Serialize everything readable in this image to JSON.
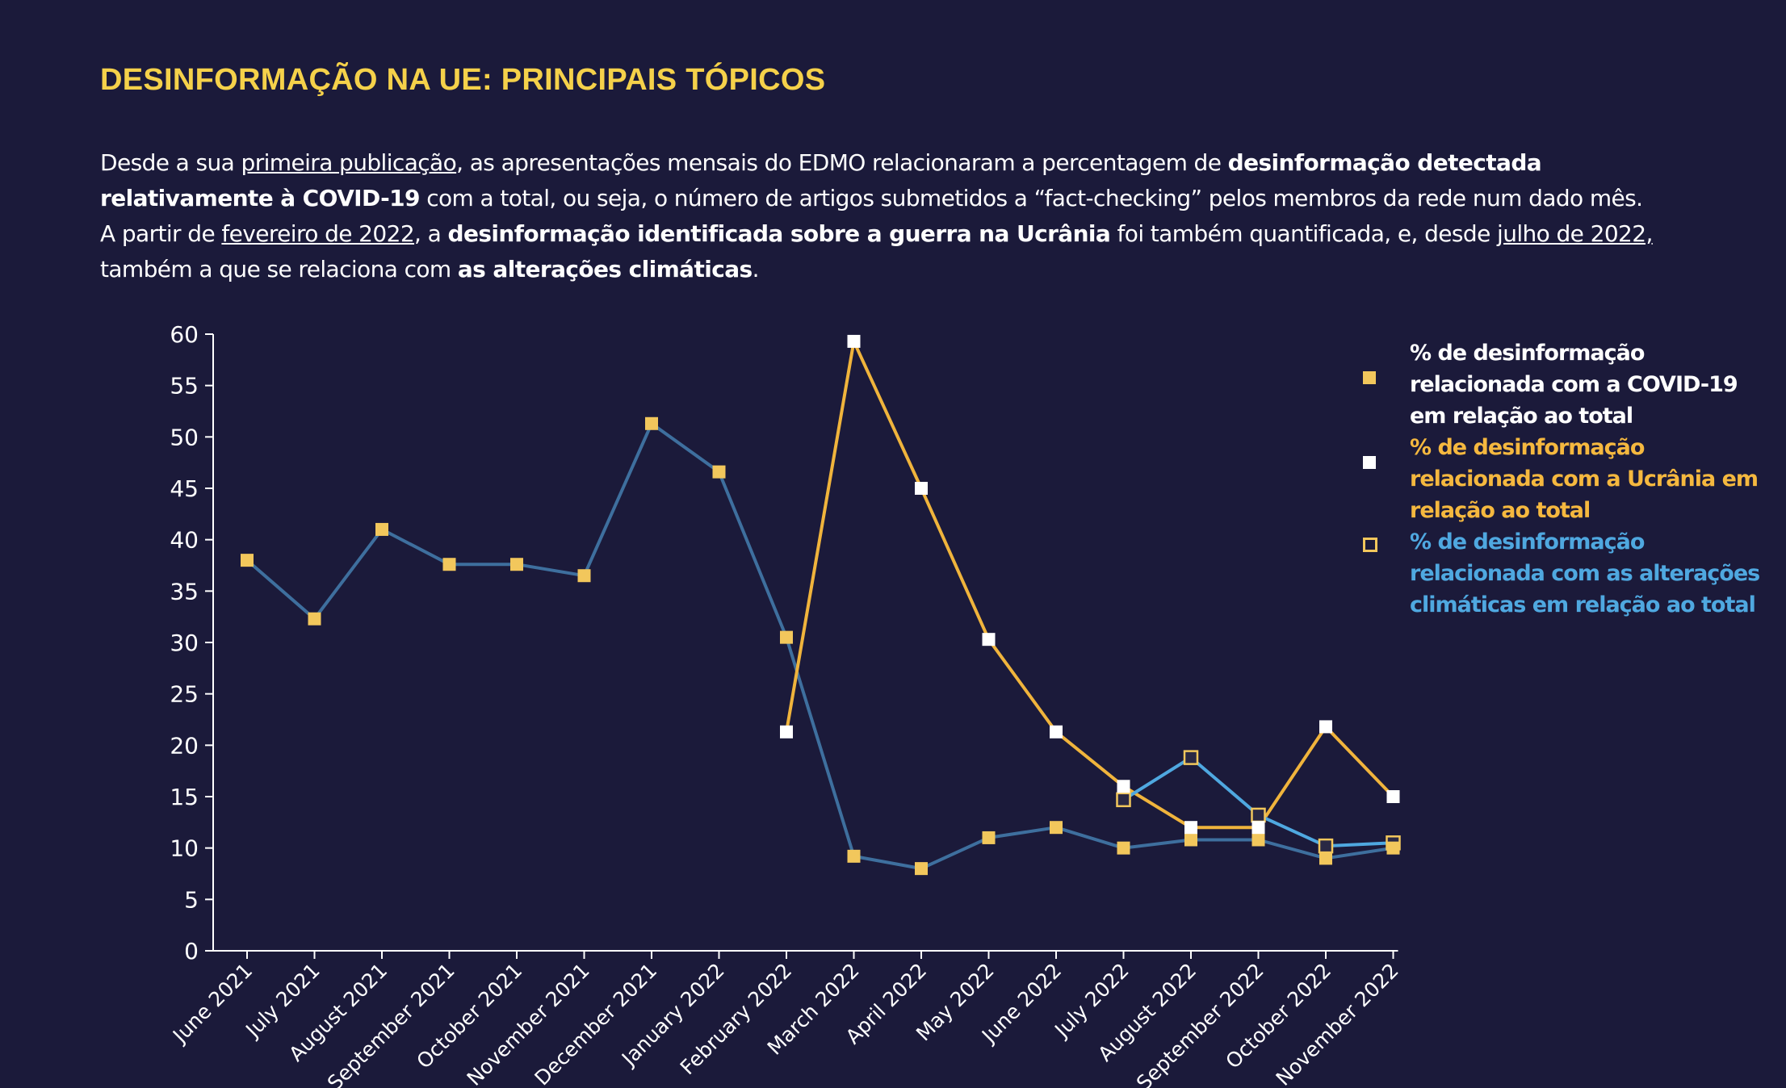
{
  "title": "DESINFORMAÇÃO NA UE: PRINCIPAIS TÓPICOS",
  "intro": {
    "p1_a": "Desde a sua ",
    "p1_link": "primeira publicação",
    "p1_b": ", as apresentações mensais do EDMO relacionaram a percentagem de ",
    "p1_bold": "desinformação detectada relativamente à COVID-19",
    "p1_c": " com a total, ou seja, o número de artigos submetidos a “fact-checking” pelos membros da rede num dado mês.",
    "p2_a": "A partir de ",
    "p2_link1": "fevereiro de 2022",
    "p2_b": ", a ",
    "p2_bold1": "desinformação identificada sobre a guerra na Ucrânia",
    "p2_c": " foi também quantificada, e, desde ",
    "p2_link2": "julho de 2022,",
    "p2_d": " também a que se relaciona com ",
    "p2_bold2": "as alterações climáticas",
    "p2_e": "."
  },
  "colors": {
    "background": "#1b1a3a",
    "title": "#f5d14a",
    "covid_line": "#3e6f9e",
    "covid_marker": "#f2c75c",
    "ukraine_line": "#f0b43c",
    "ukraine_marker": "#ffffff",
    "climate_line": "#4fa8e0",
    "legend_covid": "#ffffff",
    "legend_ukraine": "#f5b83f",
    "legend_climate": "#4fa8e0"
  },
  "legend": [
    {
      "label": "% de desinformação relacionada com a COVID-19 em relação ao total",
      "marker": "filled-yellow-square"
    },
    {
      "label": "% de desinformação relacionada com a Ucrânia em relação ao total",
      "marker": "white-square"
    },
    {
      "label": "% de desinformação relacionada com as alterações climáticas em relação ao total",
      "marker": "outlined-yellow-square"
    }
  ],
  "chart_data": {
    "type": "line",
    "x": [
      "June 2021",
      "July 2021",
      "August 2021",
      "September 2021",
      "October 2021",
      "November 2021",
      "December 2021",
      "January 2022",
      "February 2022",
      "March 2022",
      "April 2022",
      "May 2022",
      "June 2022",
      "July 2022",
      "August 2022",
      "September 2022",
      "October 2022",
      "November 2022"
    ],
    "ylim": [
      0,
      60
    ],
    "yticks": [
      0,
      5,
      10,
      15,
      20,
      25,
      30,
      35,
      40,
      45,
      50,
      55,
      60
    ],
    "grid": false,
    "legend_position": "right",
    "series": [
      {
        "name": "% de desinformação relacionada com a COVID-19 em relação ao total",
        "values": [
          38,
          32.3,
          41,
          37.6,
          37.6,
          36.5,
          51.3,
          46.6,
          30.5,
          9.2,
          8,
          11,
          12,
          10,
          10.8,
          10.8,
          9,
          10
        ]
      },
      {
        "name": "% de desinformação relacionada com a Ucrânia em relação ao total",
        "values": [
          null,
          null,
          null,
          null,
          null,
          null,
          null,
          null,
          21.3,
          59.3,
          45,
          30.3,
          21.3,
          16,
          12,
          12,
          21.8,
          15
        ]
      },
      {
        "name": "% de desinformação relacionada com as alterações climáticas em relação ao total",
        "values": [
          null,
          null,
          null,
          null,
          null,
          null,
          null,
          null,
          null,
          null,
          null,
          null,
          null,
          14.7,
          18.8,
          13.2,
          10.2,
          10.5
        ]
      }
    ]
  }
}
